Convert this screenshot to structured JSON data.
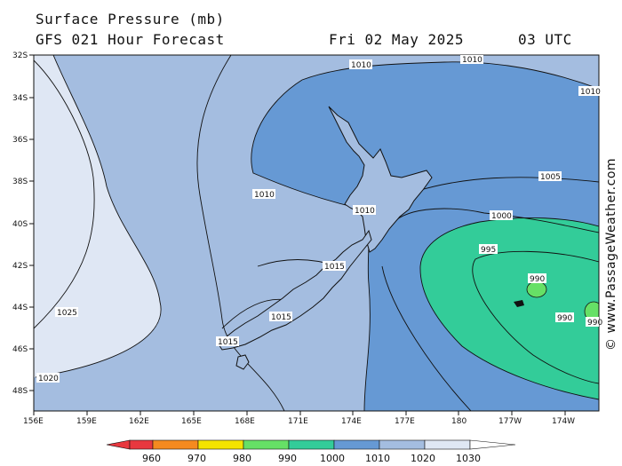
{
  "header": {
    "title": "Surface Pressure (mb)",
    "subtitle": "GFS 021 Hour Forecast",
    "date": "Fri 02 May 2025",
    "time": "03 UTC"
  },
  "credit": "© www.PassageWeather.com",
  "axes": {
    "lat_ticks": [
      "32S",
      "34S",
      "36S",
      "38S",
      "40S",
      "42S",
      "44S",
      "46S",
      "48S"
    ],
    "lon_ticks": [
      "156E",
      "159E",
      "162E",
      "165E",
      "168E",
      "171E",
      "174E",
      "177E",
      "180",
      "177W",
      "174W"
    ]
  },
  "isobars": [
    {
      "value": "1010",
      "label": "1010"
    },
    {
      "value": "1010b",
      "label": "1010"
    },
    {
      "value": "1010c",
      "label": "1010"
    },
    {
      "value": "1010d",
      "label": "1010"
    },
    {
      "value": "1010e",
      "label": "1010"
    },
    {
      "value": "1005",
      "label": "1005"
    },
    {
      "value": "1000",
      "label": "1000"
    },
    {
      "value": "995",
      "label": "995"
    },
    {
      "value": "990a",
      "label": "990"
    },
    {
      "value": "990b",
      "label": "990"
    },
    {
      "value": "990c",
      "label": "990"
    },
    {
      "value": "1015a",
      "label": "1015"
    },
    {
      "value": "1015b",
      "label": "1015"
    },
    {
      "value": "1015c",
      "label": "1015"
    },
    {
      "value": "1025",
      "label": "1025"
    },
    {
      "value": "1020",
      "label": "1020"
    }
  ],
  "legend": {
    "labels": [
      "960",
      "970",
      "980",
      "990",
      "1000",
      "1010",
      "1020",
      "1030"
    ],
    "colors": [
      "#e8383f",
      "#f58a1f",
      "#f4e400",
      "#66e066",
      "#33cc99",
      "#6699d4",
      "#a4bde0",
      "#dfe7f4"
    ]
  },
  "colors": {
    "p1020": "#dfe7f4",
    "p1015": "#a4bde0",
    "p1010": "#a4bde0",
    "p1005": "#6699d4",
    "p995": "#33cc99",
    "p990": "#66e066"
  }
}
